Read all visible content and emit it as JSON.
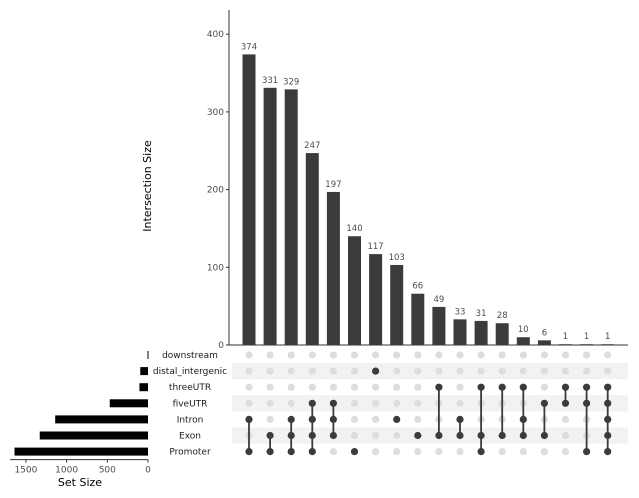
{
  "chart_data": {
    "type": "bar",
    "subtype": "upset",
    "ylabel": "Intersection Size",
    "set_size_label": "Set Size",
    "ylim": [
      0,
      430
    ],
    "yticks": [
      "0",
      "100",
      "200",
      "300",
      "400"
    ],
    "set_size_ticks": [
      "1500",
      "1000",
      "500",
      "0"
    ],
    "set_size_lim": [
      0,
      1650
    ],
    "sets": [
      "downstream",
      "distal_intergenic",
      "threeUTR",
      "fiveUTR",
      "Intron",
      "Exon",
      "Promoter"
    ],
    "set_sizes": [
      6,
      95,
      105,
      470,
      1140,
      1330,
      1640
    ],
    "intersections": [
      {
        "value": 374,
        "label": "374",
        "members": [
          "Intron",
          "Promoter"
        ]
      },
      {
        "value": 331,
        "label": "331",
        "members": [
          "Exon",
          "Promoter"
        ]
      },
      {
        "value": 329,
        "label": "329",
        "members": [
          "Intron",
          "Exon",
          "Promoter"
        ]
      },
      {
        "value": 247,
        "label": "247",
        "members": [
          "fiveUTR",
          "Intron",
          "Exon",
          "Promoter"
        ]
      },
      {
        "value": 197,
        "label": "197",
        "members": [
          "fiveUTR",
          "Intron",
          "Exon"
        ]
      },
      {
        "value": 140,
        "label": "140",
        "members": [
          "Promoter"
        ]
      },
      {
        "value": 117,
        "label": "117",
        "members": [
          "distal_intergenic"
        ]
      },
      {
        "value": 103,
        "label": "103",
        "members": [
          "Intron"
        ]
      },
      {
        "value": 66,
        "label": "66",
        "members": [
          "Exon"
        ]
      },
      {
        "value": 49,
        "label": "49",
        "members": [
          "threeUTR",
          "Exon"
        ]
      },
      {
        "value": 33,
        "label": "33",
        "members": [
          "Intron",
          "Exon"
        ]
      },
      {
        "value": 31,
        "label": "31",
        "members": [
          "threeUTR",
          "Exon",
          "Promoter"
        ]
      },
      {
        "value": 28,
        "label": "28",
        "members": [
          "threeUTR",
          "Exon"
        ]
      },
      {
        "value": 10,
        "label": "10",
        "members": [
          "threeUTR",
          "Intron",
          "Exon"
        ]
      },
      {
        "value": 6,
        "label": "6",
        "members": [
          "fiveUTR",
          "Exon"
        ]
      },
      {
        "value": 1,
        "label": "1",
        "members": [
          "threeUTR",
          "fiveUTR"
        ]
      },
      {
        "value": 1,
        "label": "1",
        "members": [
          "threeUTR",
          "fiveUTR",
          "Promoter"
        ]
      },
      {
        "value": 1,
        "label": "1",
        "members": [
          "threeUTR",
          "fiveUTR",
          "Intron",
          "Exon",
          "Promoter"
        ]
      }
    ],
    "colors": {
      "bar": "#3b3b3b",
      "set_bar": "#000000",
      "dot_active": "#3b3b3b",
      "dot_inactive": "#dddddd",
      "stripe": "#f2f2f2"
    },
    "grid": false
  }
}
